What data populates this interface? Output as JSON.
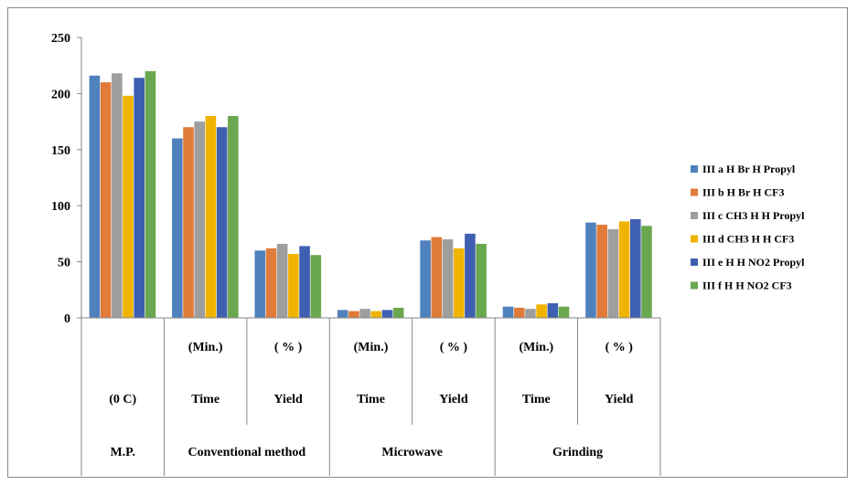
{
  "chart_data": {
    "type": "bar",
    "ylim": [
      0,
      250
    ],
    "yticks": [
      0,
      50,
      100,
      150,
      200,
      250
    ],
    "grid": false,
    "legend_position": "right",
    "categories": [
      {
        "rows": [
          "",
          "(0 C)",
          "M.P."
        ]
      },
      {
        "rows": [
          "(Min.)",
          "Time"
        ]
      },
      {
        "rows": [
          "( % )",
          "Yield"
        ]
      },
      {
        "rows": [
          "(Min.)",
          "Time"
        ]
      },
      {
        "rows": [
          "( % )",
          "Yield"
        ]
      },
      {
        "rows": [
          "(Min.)",
          "Time"
        ]
      },
      {
        "rows": [
          "( % )",
          "Yield"
        ]
      }
    ],
    "groups": [
      {
        "label": "Conventional method",
        "from": 1,
        "to": 2
      },
      {
        "label": "Microwave",
        "from": 3,
        "to": 4
      },
      {
        "label": "Grinding",
        "from": 5,
        "to": 6
      }
    ],
    "series": [
      {
        "name": "III a  H Br H Propyl",
        "color": "#4f81bd",
        "values": [
          216,
          160,
          60,
          7,
          69,
          10,
          85
        ]
      },
      {
        "name": "III b  H Br H CF3",
        "color": "#e07b39",
        "values": [
          210,
          170,
          62,
          6,
          72,
          9,
          83
        ]
      },
      {
        "name": "III c  CH3 H H Propyl",
        "color": "#9e9e9e",
        "values": [
          218,
          175,
          66,
          8,
          70,
          8,
          79
        ]
      },
      {
        "name": "III d  CH3 H H CF3",
        "color": "#f0b400",
        "values": [
          198,
          180,
          57,
          6,
          62,
          12,
          86
        ]
      },
      {
        "name": "III e  H H NO2 Propyl",
        "color": "#3f5fb0",
        "values": [
          214,
          170,
          64,
          7,
          75,
          13,
          88
        ]
      },
      {
        "name": "III f  H H NO2 CF3",
        "color": "#6aa84f",
        "values": [
          220,
          180,
          56,
          9,
          66,
          10,
          82
        ]
      }
    ]
  }
}
